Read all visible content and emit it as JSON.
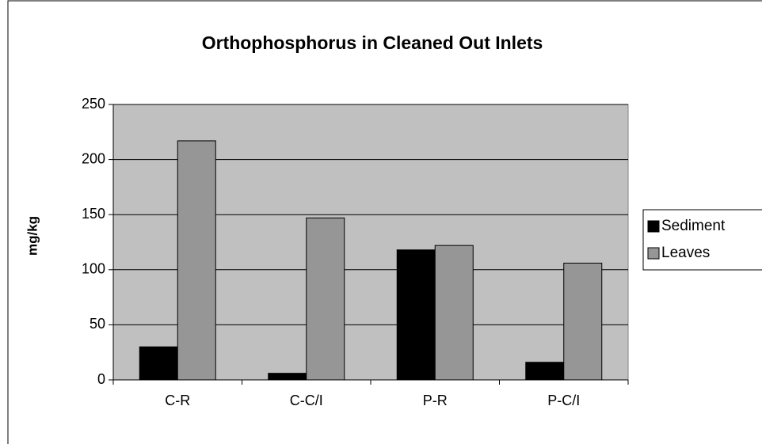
{
  "chart_data": {
    "type": "bar",
    "title": "Orthophosphorus in Cleaned Out Inlets",
    "ylabel": "mg/kg",
    "categories": [
      "C-R",
      "C-C/I",
      "P-R",
      "P-C/I"
    ],
    "series": [
      {
        "name": "Sediment",
        "color": "#000000",
        "values": [
          30,
          6,
          118,
          16
        ]
      },
      {
        "name": "Leaves",
        "color": "#969696",
        "values": [
          217,
          147,
          122,
          106
        ]
      }
    ],
    "ylim": [
      0,
      250
    ],
    "yticks": [
      0,
      50,
      100,
      150,
      200,
      250
    ],
    "grid": true,
    "legend": "right"
  }
}
